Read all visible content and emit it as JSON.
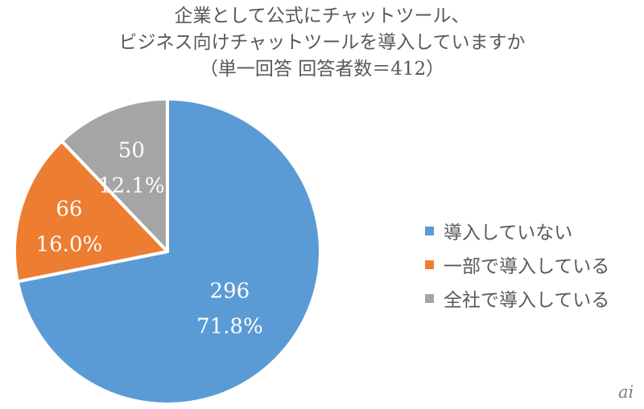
{
  "chart_data": {
    "type": "pie",
    "title_lines": [
      "企業として公式にチャットツール、",
      "ビジネス向けチャットツールを導入していますか",
      "（単一回答 回答者数＝412）"
    ],
    "slices": [
      {
        "name": "導入していない",
        "value": 296,
        "percent_label": "71.8%",
        "color": "#5b9bd5"
      },
      {
        "name": "一部で導入している",
        "value": 66,
        "percent_label": "16.0%",
        "color": "#ed7d31"
      },
      {
        "name": "全社で導入している",
        "value": 50,
        "percent_label": "12.1%",
        "color": "#a5a5a5"
      }
    ],
    "total": 412,
    "legend_position": "right",
    "start_angle": "12 o'clock, clockwise"
  },
  "watermark": "ai"
}
